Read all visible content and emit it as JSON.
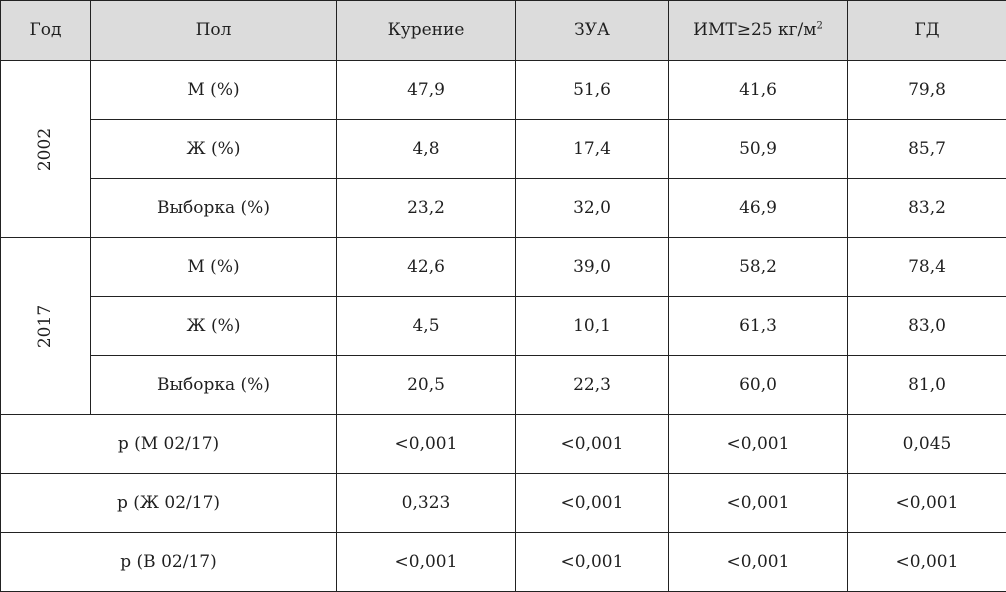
{
  "header": {
    "year": "Год",
    "sex": "Пол",
    "smoking": "Курение",
    "zua": "ЗУА",
    "imt_prefix": "ИМТ≥25 кг/м",
    "imt_sup": "2",
    "gd": "ГД"
  },
  "groups": [
    {
      "year": "2002",
      "rows": [
        {
          "label": "М (%)",
          "smoking": "47,9",
          "zua": "51,6",
          "imt": "41,6",
          "gd": "79,8"
        },
        {
          "label": "Ж (%)",
          "smoking": "4,8",
          "zua": "17,4",
          "imt": "50,9",
          "gd": "85,7"
        },
        {
          "label": "Выборка (%)",
          "smoking": "23,2",
          "zua": "32,0",
          "imt": "46,9",
          "gd": "83,2"
        }
      ]
    },
    {
      "year": "2017",
      "rows": [
        {
          "label": "М (%)",
          "smoking": "42,6",
          "zua": "39,0",
          "imt": "58,2",
          "gd": "78,4"
        },
        {
          "label": "Ж (%)",
          "smoking": "4,5",
          "zua": "10,1",
          "imt": "61,3",
          "gd": "83,0"
        },
        {
          "label": "Выборка (%)",
          "smoking": "20,5",
          "zua": "22,3",
          "imt": "60,0",
          "gd": "81,0"
        }
      ]
    }
  ],
  "pvalues": [
    {
      "label": "p (М 02/17)",
      "smoking": "<0,001",
      "zua": "<0,001",
      "imt": "<0,001",
      "gd": "0,045"
    },
    {
      "label": "p (Ж 02/17)",
      "smoking": "0,323",
      "zua": "<0,001",
      "imt": "<0,001",
      "gd": "<0,001"
    },
    {
      "label": "p (В 02/17)",
      "smoking": "<0,001",
      "zua": "<0,001",
      "imt": "<0,001",
      "gd": "<0,001"
    }
  ]
}
